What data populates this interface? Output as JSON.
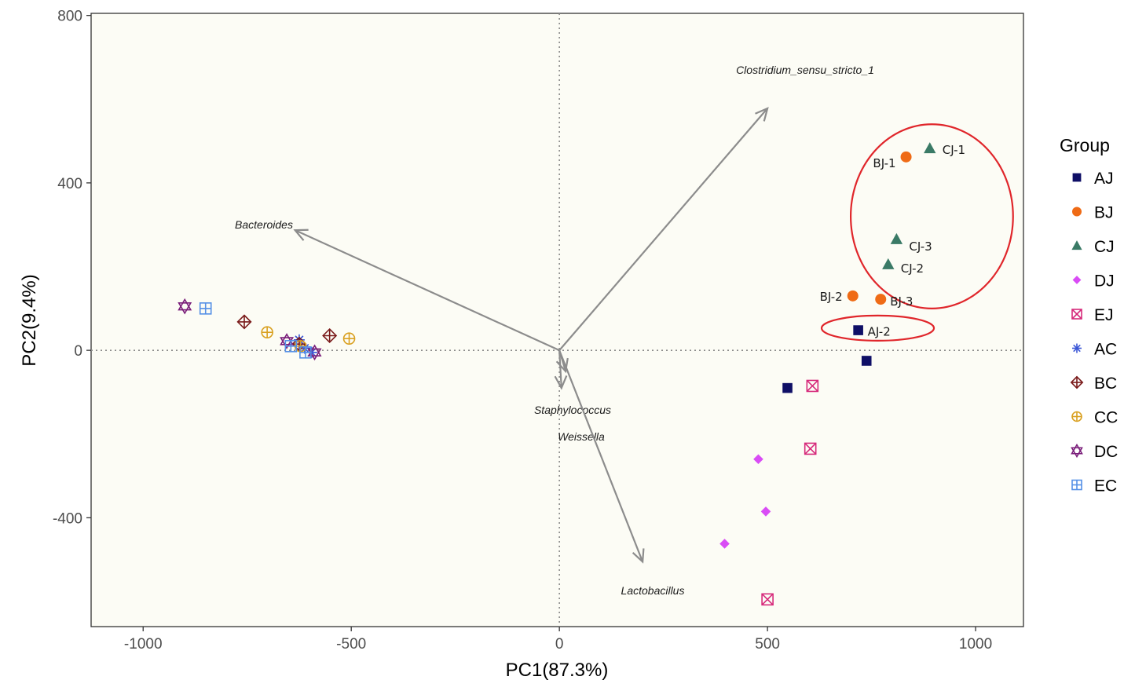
{
  "chart_data": {
    "type": "scatter",
    "subtype": "PCA biplot",
    "xlabel": "PC1(87.3%)",
    "ylabel": "PC2(9.4%)",
    "xlim": [
      -1125,
      1115
    ],
    "ylim": [
      -660,
      805
    ],
    "xticks": [
      -1000,
      -500,
      0,
      500,
      1000
    ],
    "xtick_labels": [
      "-1000",
      "-500",
      "0",
      "500",
      "1000"
    ],
    "yticks": [
      -400,
      0,
      400,
      800
    ],
    "ytick_labels": [
      "-400",
      "0",
      "400",
      "800"
    ],
    "grid": false,
    "reference_lines": {
      "x": 0,
      "y": 0,
      "style": "dotted"
    },
    "legend": {
      "title": "Group",
      "position": "right",
      "entries": [
        "AJ",
        "BJ",
        "CJ",
        "DJ",
        "EJ",
        "AC",
        "BC",
        "CC",
        "DC",
        "EC"
      ]
    },
    "groups": {
      "AJ": {
        "color": "#0f0f66",
        "shape": "square"
      },
      "BJ": {
        "color": "#ef6b16",
        "shape": "circle"
      },
      "CJ": {
        "color": "#3a7a66",
        "shape": "triangle"
      },
      "DJ": {
        "color": "#d94cf5",
        "shape": "diamond"
      },
      "EJ": {
        "color": "#d6297a",
        "shape": "square-x"
      },
      "AC": {
        "color": "#3b56d6",
        "shape": "asterisk"
      },
      "BC": {
        "color": "#7a1a1a",
        "shape": "diamond-plus"
      },
      "CC": {
        "color": "#d9a020",
        "shape": "circle-plus"
      },
      "DC": {
        "color": "#7a1e7a",
        "shape": "star-of-david"
      },
      "EC": {
        "color": "#5590e6",
        "shape": "square-plus"
      }
    },
    "series": [
      {
        "name": "AJ",
        "points": [
          {
            "x": 718,
            "y": 48,
            "label": "AJ-2"
          },
          {
            "x": 738,
            "y": -25
          },
          {
            "x": 548,
            "y": -90
          }
        ]
      },
      {
        "name": "BJ",
        "points": [
          {
            "x": 833,
            "y": 462,
            "label": "BJ-1"
          },
          {
            "x": 705,
            "y": 130,
            "label": "BJ-2"
          },
          {
            "x": 772,
            "y": 122,
            "label": "BJ-3"
          }
        ]
      },
      {
        "name": "CJ",
        "points": [
          {
            "x": 890,
            "y": 482,
            "label": "CJ-1"
          },
          {
            "x": 790,
            "y": 205,
            "label": "CJ-2"
          },
          {
            "x": 810,
            "y": 265,
            "label": "CJ-3"
          }
        ]
      },
      {
        "name": "DJ",
        "points": [
          {
            "x": 478,
            "y": -260
          },
          {
            "x": 496,
            "y": -385
          },
          {
            "x": 397,
            "y": -462
          }
        ]
      },
      {
        "name": "EJ",
        "points": [
          {
            "x": 608,
            "y": -85
          },
          {
            "x": 603,
            "y": -235
          },
          {
            "x": 500,
            "y": -595
          }
        ]
      },
      {
        "name": "AC",
        "points": [
          {
            "x": -625,
            "y": 25
          },
          {
            "x": -612,
            "y": 5
          },
          {
            "x": -595,
            "y": -5
          }
        ]
      },
      {
        "name": "BC",
        "points": [
          {
            "x": -757,
            "y": 68
          },
          {
            "x": -552,
            "y": 35
          },
          {
            "x": -625,
            "y": 15
          }
        ]
      },
      {
        "name": "CC",
        "points": [
          {
            "x": -702,
            "y": 43
          },
          {
            "x": -505,
            "y": 28
          },
          {
            "x": -622,
            "y": 10
          }
        ]
      },
      {
        "name": "DC",
        "points": [
          {
            "x": -900,
            "y": 105
          },
          {
            "x": -655,
            "y": 22
          },
          {
            "x": -588,
            "y": -5
          }
        ]
      },
      {
        "name": "EC",
        "points": [
          {
            "x": -850,
            "y": 100
          },
          {
            "x": -645,
            "y": 10
          },
          {
            "x": -610,
            "y": -5
          }
        ]
      }
    ],
    "vectors": [
      {
        "label": "Clostridium_sensu_stricto_1",
        "x": 500,
        "y": 578
      },
      {
        "label": "Bacteroides",
        "x": -635,
        "y": 287
      },
      {
        "label": "Staphylococcus",
        "x": 5,
        "y": -90
      },
      {
        "label": "Weissella",
        "x": 15,
        "y": -50
      },
      {
        "label": "Lactobacillus",
        "x": 200,
        "y": -505
      }
    ],
    "highlight_ellipses": [
      {
        "cx": 895,
        "cy": 320,
        "rx": 195,
        "ry": 220
      },
      {
        "cx": 765,
        "cy": 53,
        "rx": 135,
        "ry": 30
      }
    ]
  }
}
